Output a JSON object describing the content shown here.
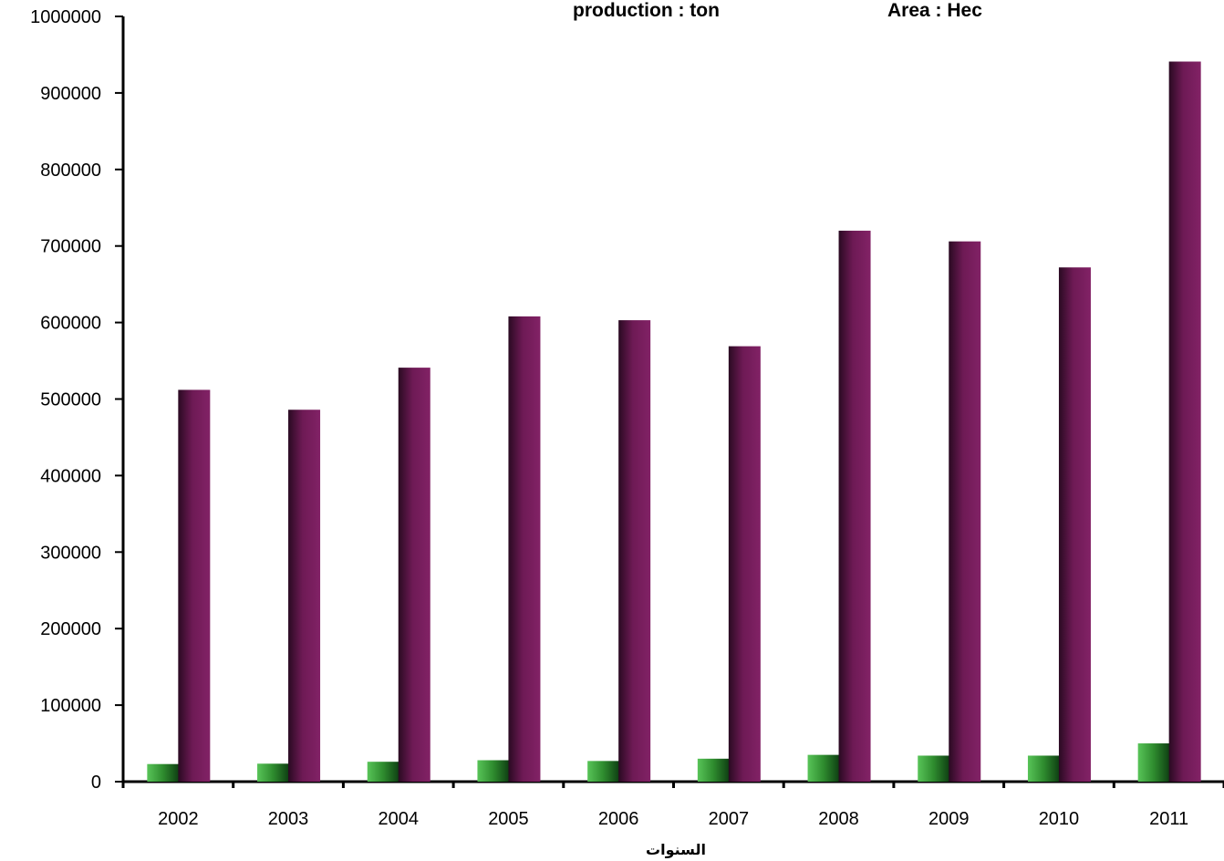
{
  "legend": {
    "items": [
      "production : ton",
      "Area : Hec"
    ]
  },
  "chart_data": {
    "type": "bar",
    "categories": [
      "2002",
      "2003",
      "2004",
      "2005",
      "2006",
      "2007",
      "2008",
      "2009",
      "2010",
      "2011"
    ],
    "series": [
      {
        "name": "Area : Hec",
        "values": [
          23000,
          23500,
          26000,
          28000,
          27000,
          30000,
          35000,
          34000,
          34000,
          50000
        ],
        "color": "#2e8b2e"
      },
      {
        "name": "production : ton",
        "values": [
          512000,
          486000,
          541000,
          608000,
          603000,
          569000,
          720000,
          706000,
          672000,
          941000
        ],
        "color": "#7a1f5c"
      }
    ],
    "xlabel": "السنوات",
    "ylabel": "",
    "ylim": [
      0,
      1000000
    ],
    "yticks": [
      "0",
      "100000",
      "200000",
      "300000",
      "400000",
      "500000",
      "600000",
      "700000",
      "800000",
      "900000",
      "1000000"
    ],
    "grid": false
  }
}
